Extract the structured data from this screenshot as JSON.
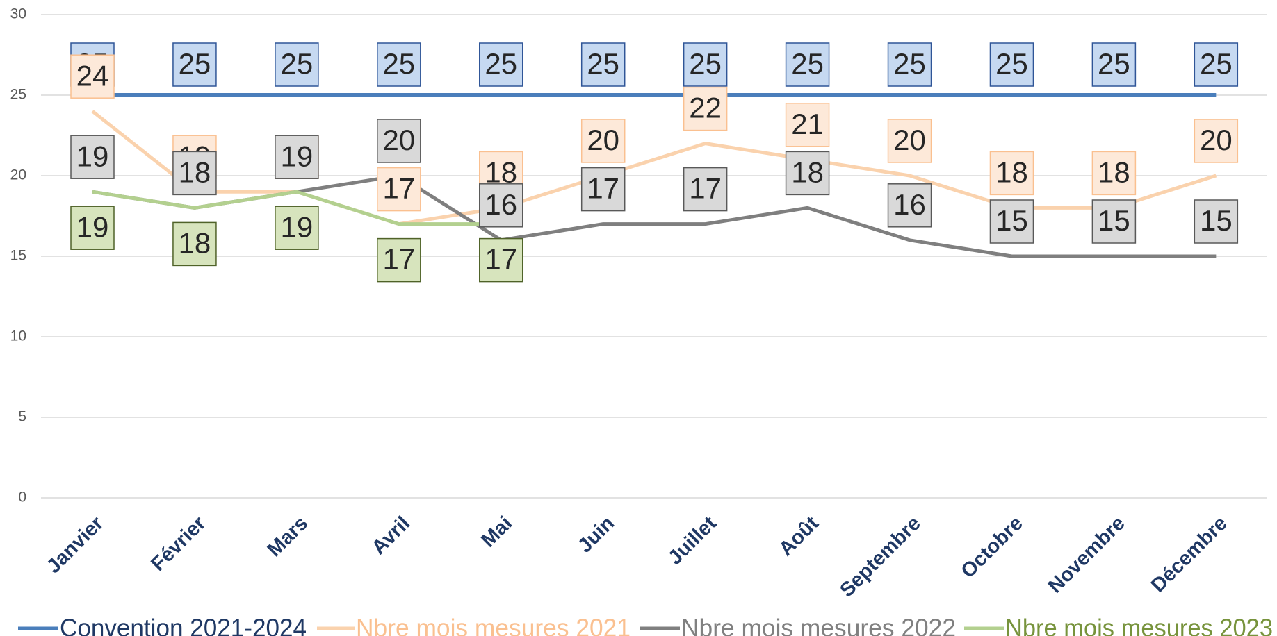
{
  "chart_data": {
    "type": "line",
    "categories": [
      "Janvier",
      "Février",
      "Mars",
      "Avril",
      "Mai",
      "Juin",
      "Juillet",
      "Août",
      "Septembre",
      "Octobre",
      "Novembre",
      "Décembre"
    ],
    "series": [
      {
        "name": "Convention 2021-2024",
        "color": "#4a7ebb",
        "values": [
          25,
          25,
          25,
          25,
          25,
          25,
          25,
          25,
          25,
          25,
          25,
          25
        ]
      },
      {
        "name": "Nbre mois mesures 2021",
        "color": "#fad2ad",
        "values": [
          24,
          19,
          19,
          17,
          18,
          20,
          22,
          21,
          20,
          18,
          18,
          20
        ]
      },
      {
        "name": "Nbre mois mesures 2022",
        "color": "#7f7f7f",
        "values": [
          19,
          18,
          19,
          20,
          16,
          17,
          17,
          18,
          16,
          15,
          15,
          15
        ]
      },
      {
        "name": "Nbre mois mesures 2023",
        "color": "#b3d08f",
        "values": [
          19,
          18,
          19,
          17,
          17,
          null,
          null,
          null,
          null,
          null,
          null,
          null
        ]
      }
    ],
    "ylim": [
      0,
      30
    ],
    "yticks": [
      0,
      5,
      10,
      15,
      20,
      25,
      30
    ],
    "grid": true,
    "legend": "bottom"
  }
}
